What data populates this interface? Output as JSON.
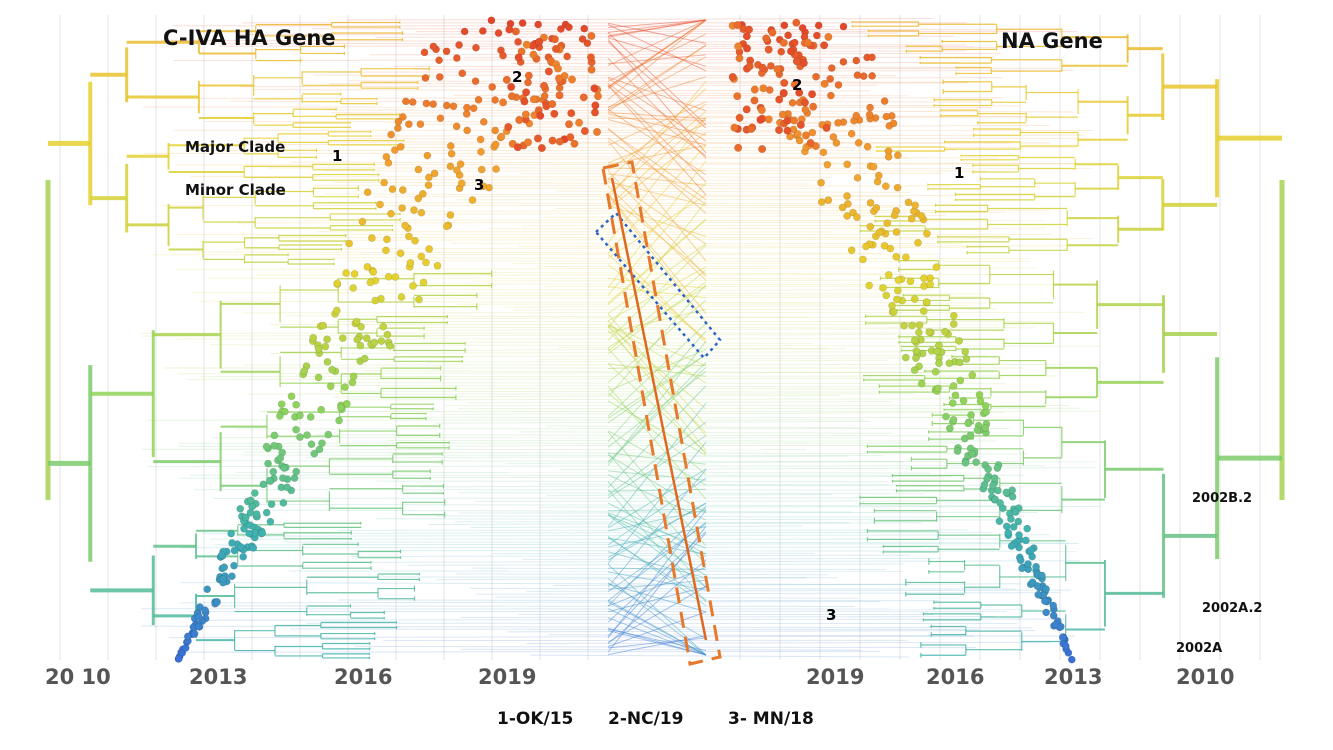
{
  "titles": {
    "left": "C-IVA HA Gene",
    "right": "NA Gene"
  },
  "clades": {
    "major": "Major Clade",
    "minor": "Minor Clade"
  },
  "markers": {
    "ha": [
      "1",
      "2",
      "3"
    ],
    "na": [
      "1",
      "2",
      "3"
    ]
  },
  "axis_left": {
    "ticks": [
      "20 10",
      "2013",
      "2016",
      "2019"
    ]
  },
  "axis_right": {
    "ticks": [
      "2019",
      "2016",
      "2013",
      "2010"
    ]
  },
  "lineages": [
    "2002B.2",
    "2002A.2",
    "2002A"
  ],
  "legend": {
    "item1": "1-OK/15",
    "item2": "2-NC/19",
    "item3": "3- MN/18"
  },
  "colors": {
    "blue": "#3a6fd8",
    "teal": "#3fb3b0",
    "green": "#8fd35a",
    "yellow": "#e6d22e",
    "orange": "#f29a2e",
    "red": "#e2432a",
    "branch": "#8aa3b8",
    "highlight_dashed": "#e8782a",
    "highlight_dotted": "#2b63c9"
  }
}
